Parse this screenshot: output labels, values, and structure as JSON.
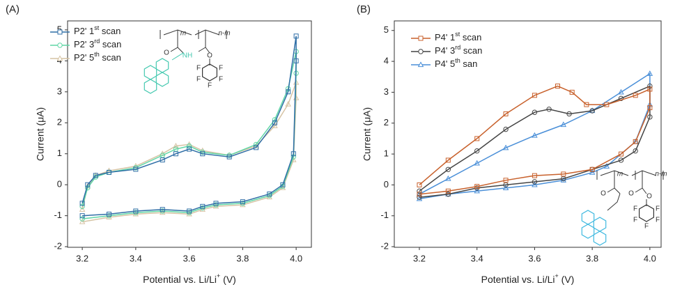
{
  "chart_data": [
    {
      "type": "line",
      "panel_label": "(A)",
      "xlabel": "Potential vs. Li/Li+ (V)",
      "ylabel": "Current (μA)",
      "xlim": [
        3.145,
        4.057
      ],
      "ylim": [
        -2.02,
        5.29
      ],
      "xticks": [
        3.2,
        3.4,
        3.6,
        3.8,
        {
          "value": 4,
          "label": "4.0"
        }
      ],
      "yticks": [
        -2,
        -1,
        0,
        1,
        2,
        3,
        4,
        5
      ],
      "legend": "upper left",
      "annotations": [
        "m",
        "n-m",
        "NH",
        "O",
        "O",
        "F",
        "F",
        "F",
        "F",
        "F"
      ],
      "series": [
        {
          "name": "P2' 1st scan",
          "color": "#2f6ea6",
          "marker": "square",
          "x": [
            3.2,
            3.22,
            3.25,
            3.3,
            3.4,
            3.5,
            3.55,
            3.6,
            3.65,
            3.75,
            3.85,
            3.92,
            3.97,
            4.0,
            4.0,
            3.99,
            3.95,
            3.9,
            3.8,
            3.7,
            3.65,
            3.6,
            3.5,
            3.4,
            3.3,
            3.2
          ],
          "y": [
            -0.6,
            0.0,
            0.3,
            0.4,
            0.5,
            0.8,
            1.0,
            1.15,
            1.0,
            0.9,
            1.2,
            2.0,
            3.0,
            4.8,
            4.0,
            1.0,
            0.0,
            -0.3,
            -0.55,
            -0.6,
            -0.7,
            -0.85,
            -0.8,
            -0.85,
            -0.95,
            -1.0
          ]
        },
        {
          "name": "P2' 3rd scan",
          "color": "#5fd6a6",
          "marker": "circle",
          "x": [
            3.2,
            3.22,
            3.25,
            3.3,
            3.4,
            3.5,
            3.55,
            3.6,
            3.65,
            3.75,
            3.85,
            3.92,
            3.97,
            4.0,
            4.0,
            3.99,
            3.95,
            3.9,
            3.8,
            3.7,
            3.65,
            3.6,
            3.5,
            3.4,
            3.3,
            3.2
          ],
          "y": [
            -0.7,
            -0.1,
            0.25,
            0.4,
            0.55,
            0.95,
            1.15,
            1.25,
            1.05,
            0.95,
            1.3,
            2.1,
            3.1,
            4.3,
            3.6,
            0.9,
            -0.05,
            -0.35,
            -0.6,
            -0.65,
            -0.75,
            -0.9,
            -0.85,
            -0.9,
            -1.0,
            -1.1
          ]
        },
        {
          "name": "P2' 5th scan",
          "color": "#d6c3a4",
          "marker": "triangle",
          "x": [
            3.2,
            3.22,
            3.25,
            3.3,
            3.4,
            3.5,
            3.55,
            3.6,
            3.65,
            3.75,
            3.85,
            3.92,
            3.97,
            4.0,
            4.0,
            3.99,
            3.95,
            3.9,
            3.8,
            3.7,
            3.65,
            3.6,
            3.5,
            3.4,
            3.3,
            3.2
          ],
          "y": [
            -0.8,
            -0.05,
            0.3,
            0.45,
            0.6,
            1.0,
            1.25,
            1.3,
            1.1,
            0.95,
            1.25,
            1.9,
            2.6,
            3.3,
            2.8,
            0.8,
            -0.1,
            -0.4,
            -0.65,
            -0.7,
            -0.8,
            -0.95,
            -0.9,
            -0.95,
            -1.05,
            -1.2
          ]
        }
      ]
    },
    {
      "type": "line",
      "panel_label": "(B)",
      "xlabel": "Potential vs. Li/Li+ (V)",
      "ylabel": "Current (μA)",
      "xlim": [
        3.113,
        4.039
      ],
      "ylim": [
        -2.02,
        5.31
      ],
      "xticks": [
        3.2,
        3.4,
        3.6,
        3.8,
        {
          "value": 4,
          "label": "4.0"
        }
      ],
      "yticks": [
        -2,
        -1,
        0,
        1,
        2,
        3,
        4,
        5
      ],
      "legend": "upper left",
      "annotations": [
        "m",
        "n-m",
        "O",
        "O",
        "O",
        "F",
        "F",
        "F",
        "F",
        "F"
      ],
      "series": [
        {
          "name": "P4' 1st scan",
          "color": "#c8612c",
          "marker": "square",
          "x": [
            3.2,
            3.3,
            3.4,
            3.5,
            3.6,
            3.68,
            3.73,
            3.78,
            3.85,
            3.95,
            4.0,
            4.0,
            3.95,
            3.9,
            3.8,
            3.7,
            3.6,
            3.5,
            3.4,
            3.3,
            3.2
          ],
          "y": [
            0.0,
            0.8,
            1.5,
            2.3,
            2.9,
            3.2,
            3.0,
            2.6,
            2.6,
            2.9,
            3.1,
            2.5,
            1.4,
            1.0,
            0.5,
            0.35,
            0.3,
            0.15,
            -0.05,
            -0.2,
            -0.3
          ]
        },
        {
          "name": "P4' 3rd scan",
          "color": "#444444",
          "marker": "circle",
          "x": [
            3.2,
            3.3,
            3.4,
            3.5,
            3.6,
            3.65,
            3.72,
            3.8,
            3.9,
            4.0,
            4.0,
            3.95,
            3.9,
            3.8,
            3.7,
            3.6,
            3.5,
            3.4,
            3.3,
            3.2
          ],
          "y": [
            -0.2,
            0.5,
            1.1,
            1.8,
            2.35,
            2.45,
            2.3,
            2.4,
            2.8,
            3.2,
            2.2,
            1.1,
            0.8,
            0.5,
            0.2,
            0.1,
            0.0,
            -0.1,
            -0.3,
            -0.4
          ]
        },
        {
          "name": "P4' 5th san",
          "color": "#4a8fd8",
          "marker": "triangle",
          "x": [
            3.2,
            3.3,
            3.4,
            3.5,
            3.6,
            3.7,
            3.8,
            3.9,
            4.0,
            4.0,
            3.95,
            3.85,
            3.8,
            3.7,
            3.6,
            3.5,
            3.4,
            3.3,
            3.2
          ],
          "y": [
            -0.3,
            0.2,
            0.7,
            1.2,
            1.6,
            1.95,
            2.4,
            3.0,
            3.6,
            2.6,
            1.4,
            0.6,
            0.4,
            0.15,
            0.0,
            -0.1,
            -0.2,
            -0.3,
            -0.45
          ]
        }
      ]
    }
  ]
}
